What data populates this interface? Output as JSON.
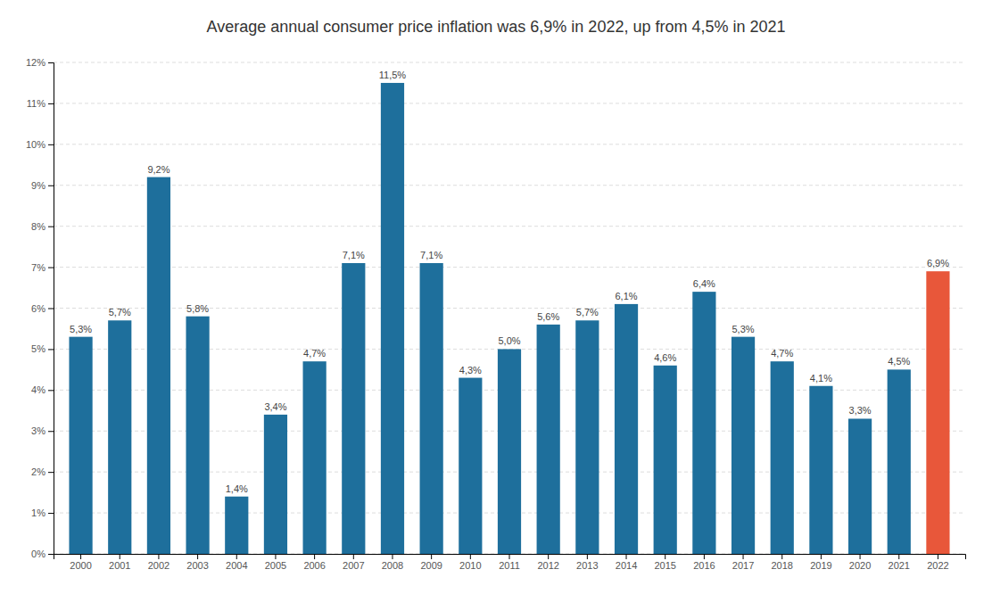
{
  "chart_data": {
    "type": "bar",
    "title": "Average annual consumer price inflation was 6,9% in 2022, up from 4,5% in 2021",
    "categories": [
      "2000",
      "2001",
      "2002",
      "2003",
      "2004",
      "2005",
      "2006",
      "2007",
      "2008",
      "2009",
      "2010",
      "2011",
      "2012",
      "2013",
      "2014",
      "2015",
      "2016",
      "2017",
      "2018",
      "2019",
      "2020",
      "2021",
      "2022"
    ],
    "values": [
      5.3,
      5.7,
      9.2,
      5.8,
      1.4,
      3.4,
      4.7,
      7.1,
      11.5,
      7.1,
      4.3,
      5.0,
      5.6,
      5.7,
      6.1,
      4.6,
      6.4,
      5.3,
      4.7,
      4.1,
      3.3,
      4.5,
      6.9
    ],
    "value_labels": [
      "5,3%",
      "5,7%",
      "9,2%",
      "5,8%",
      "1,4%",
      "3,4%",
      "4,7%",
      "7,1%",
      "11,5%",
      "7,1%",
      "4,3%",
      "5,0%",
      "5,6%",
      "5,7%",
      "6,1%",
      "4,6%",
      "6,4%",
      "5,3%",
      "4,7%",
      "4,1%",
      "3,3%",
      "4,5%",
      "6,9%"
    ],
    "colors": [
      "#1e6f9c",
      "#1e6f9c",
      "#1e6f9c",
      "#1e6f9c",
      "#1e6f9c",
      "#1e6f9c",
      "#1e6f9c",
      "#1e6f9c",
      "#1e6f9c",
      "#1e6f9c",
      "#1e6f9c",
      "#1e6f9c",
      "#1e6f9c",
      "#1e6f9c",
      "#1e6f9c",
      "#1e6f9c",
      "#1e6f9c",
      "#1e6f9c",
      "#1e6f9c",
      "#1e6f9c",
      "#1e6f9c",
      "#1e6f9c",
      "#e8573a"
    ],
    "ylim": [
      0,
      12
    ],
    "yticks": [
      {
        "value": 0,
        "label": "0%"
      },
      {
        "value": 1,
        "label": "1%"
      },
      {
        "value": 2,
        "label": "2%"
      },
      {
        "value": 3,
        "label": "3%"
      },
      {
        "value": 4,
        "label": "4%"
      },
      {
        "value": 5,
        "label": "5%"
      },
      {
        "value": 6,
        "label": "6%"
      },
      {
        "value": 7,
        "label": "7%"
      },
      {
        "value": 8,
        "label": "8%"
      },
      {
        "value": 9,
        "label": "9%"
      },
      {
        "value": 10,
        "label": "10%"
      },
      {
        "value": 11,
        "label": "11%"
      },
      {
        "value": 12,
        "label": "12%"
      }
    ],
    "grid": true,
    "data_labels": true
  }
}
